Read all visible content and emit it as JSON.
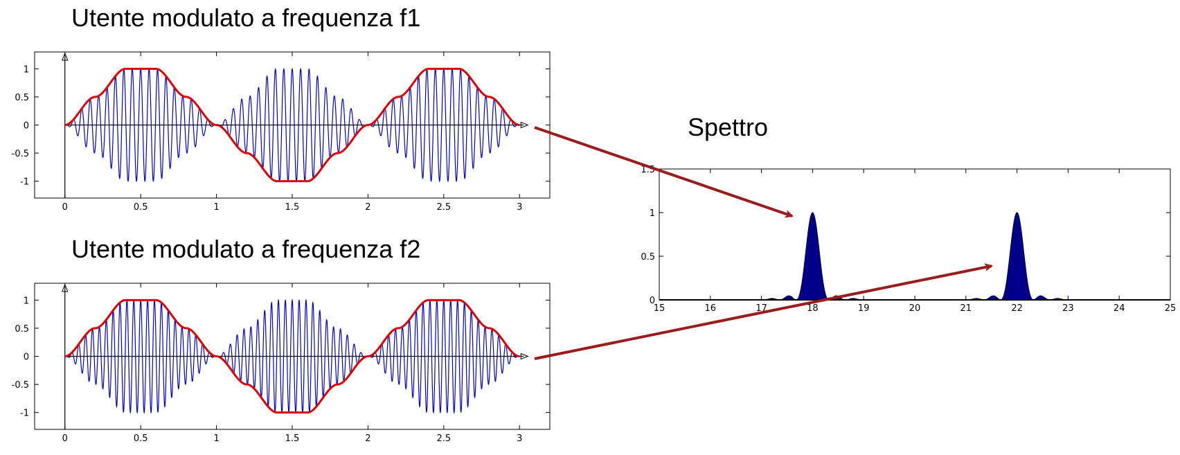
{
  "chart_data": [
    {
      "type": "line",
      "title": "Utente modulato a frequenza f1",
      "xlabel": "",
      "ylabel": "",
      "xlim": [
        -0.2,
        3.2
      ],
      "ylim": [
        -1.3,
        1.3
      ],
      "x_ticks": [
        "0",
        "0.5",
        "1",
        "1.5",
        "2",
        "2.5",
        "3"
      ],
      "y_ticks": [
        "1",
        "0.5",
        "0",
        "-0.5",
        "-1"
      ],
      "series": [
        {
          "role": "carrier",
          "color": "#0000cc",
          "periods_per_unit": 18
        },
        {
          "role": "envelope",
          "color": "#dd0000",
          "x": [
            0,
            0.2,
            0.4,
            0.6,
            0.8,
            1.0,
            1.2,
            1.4,
            1.6,
            1.8,
            2.0,
            2.2,
            2.4,
            2.6,
            2.8,
            3.0
          ],
          "y": [
            0,
            0.5,
            1,
            1,
            0.5,
            0,
            -0.5,
            -1,
            -1,
            -0.5,
            0,
            0.5,
            1,
            1,
            0.5,
            0
          ]
        }
      ],
      "grid": false
    },
    {
      "type": "line",
      "title": "Utente modulato a frequenza f2",
      "xlabel": "",
      "ylabel": "",
      "xlim": [
        -0.2,
        3.2
      ],
      "ylim": [
        -1.3,
        1.3
      ],
      "x_ticks": [
        "0",
        "0.5",
        "1",
        "1.5",
        "2",
        "2.5",
        "3"
      ],
      "y_ticks": [
        "1",
        "0.5",
        "0",
        "-0.5",
        "-1"
      ],
      "series": [
        {
          "role": "carrier",
          "color": "#0000cc",
          "periods_per_unit": 22
        },
        {
          "role": "envelope",
          "color": "#dd0000",
          "x": [
            0,
            0.2,
            0.4,
            0.6,
            0.8,
            1.0,
            1.2,
            1.4,
            1.6,
            1.8,
            2.0,
            2.2,
            2.4,
            2.6,
            2.8,
            3.0
          ],
          "y": [
            0,
            0.5,
            1,
            1,
            0.5,
            0,
            -0.5,
            -1,
            -1,
            -0.5,
            0,
            0.5,
            1,
            1,
            0.5,
            0
          ]
        }
      ],
      "grid": false
    },
    {
      "type": "area",
      "title": "Spettro",
      "xlabel": "",
      "ylabel": "",
      "xlim": [
        15,
        25
      ],
      "ylim": [
        0,
        1.5
      ],
      "x_ticks": [
        "15",
        "16",
        "17",
        "18",
        "19",
        "20",
        "21",
        "22",
        "23",
        "24",
        "25"
      ],
      "y_ticks": [
        "1.5",
        "1",
        "0.5",
        "0"
      ],
      "peaks": [
        {
          "center": 18,
          "height": 1.0
        },
        {
          "center": 22,
          "height": 1.0
        }
      ],
      "fill_color": "#00008b",
      "grid": false
    }
  ],
  "colors": {
    "carrier": "#0000cc",
    "envelope": "#dd0000",
    "spectrum_fill": "#00008b",
    "arrow": "#9b1c1c"
  }
}
